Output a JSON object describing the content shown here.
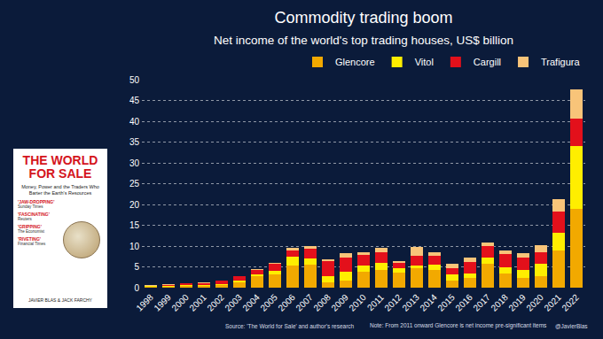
{
  "chart_data": {
    "type": "bar",
    "title": "Commodity trading boom",
    "subtitle": "Net income of the world's top trading houses, US$ billion",
    "categories": [
      "1998",
      "1999",
      "2000",
      "2001",
      "2002",
      "2003",
      "2004",
      "2005",
      "2006",
      "2007",
      "2008",
      "2009",
      "2010",
      "2011",
      "2012",
      "2013",
      "2014",
      "2015",
      "2016",
      "2017",
      "2018",
      "2019",
      "2020",
      "2021",
      "2022"
    ],
    "series": [
      {
        "name": "Glencore",
        "color": "#f2a900",
        "values": [
          0.3,
          0.3,
          0.4,
          0.5,
          0.6,
          1.2,
          2.7,
          3.2,
          5.3,
          5.5,
          1.3,
          1.6,
          3.8,
          4.2,
          3.6,
          4.6,
          4.3,
          1.7,
          2.3,
          5.8,
          3.4,
          2.3,
          2.8,
          9.0,
          18.9
        ]
      },
      {
        "name": "Vitol",
        "color": "#ffee00",
        "values": [
          0.1,
          0.1,
          0.2,
          0.2,
          0.2,
          0.4,
          0.5,
          0.8,
          2.1,
          1.5,
          1.4,
          2.3,
          1.5,
          1.7,
          1.1,
          0.8,
          1.2,
          1.4,
          1.0,
          1.4,
          1.6,
          2.0,
          3.0,
          4.2,
          15.1
        ]
      },
      {
        "name": "Cargill",
        "color": "#e3101b",
        "values": [
          0.1,
          0.3,
          0.4,
          0.4,
          0.9,
          1.1,
          1.0,
          1.7,
          1.5,
          2.4,
          3.6,
          3.3,
          2.6,
          2.7,
          1.2,
          2.3,
          2.1,
          1.6,
          2.9,
          2.7,
          3.1,
          3.0,
          2.8,
          5.0,
          6.6
        ]
      },
      {
        "name": "Trafigura",
        "color": "#f8c479",
        "values": [
          0.1,
          0.1,
          0.1,
          0.1,
          0.1,
          0.1,
          0.2,
          0.3,
          0.6,
          0.6,
          0.5,
          1.0,
          0.6,
          1.0,
          0.5,
          2.1,
          0.9,
          1.1,
          1.0,
          0.9,
          0.8,
          0.9,
          1.7,
          3.1,
          7.0
        ]
      }
    ],
    "ylim": [
      0,
      50
    ],
    "yticks": [
      0,
      5,
      10,
      15,
      20,
      25,
      30,
      35,
      40,
      45,
      50
    ],
    "grid": true,
    "stacked": true,
    "legend": "top-right",
    "annotations": [
      "Source: 'The World for Sale' and author's research",
      "Note: From 2011 onward Glencore is net income pre-significant items",
      "@JavierBlas"
    ]
  },
  "book_cover": {
    "title_lines": [
      "THE WORLD",
      "FOR SALE"
    ],
    "subtitle": "Money, Power and the Traders Who Barter the Earth's Resources",
    "reviews": [
      {
        "quote": "'JAW-DROPPING'",
        "source": "Sunday Times"
      },
      {
        "quote": "'FASCINATING'",
        "source": "Reuters"
      },
      {
        "quote": "'GRIPPING'",
        "source": "The Economist"
      },
      {
        "quote": "'RIVETING'",
        "source": "Financial Times"
      }
    ],
    "authors": "JAVIER BLAS & JACK FARCHY"
  }
}
